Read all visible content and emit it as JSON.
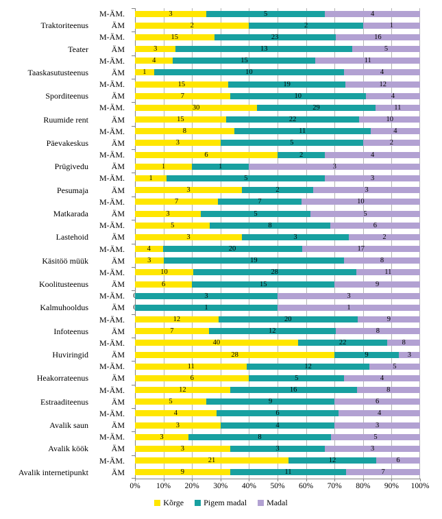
{
  "chart_data": {
    "type": "bar",
    "orientation": "horizontal",
    "stacked": "100%",
    "title": "",
    "xlabel": "",
    "ylabel": "",
    "x_axis": {
      "min": 0,
      "max": 100,
      "grid": true,
      "ticks": [
        "0%",
        "10%",
        "20%",
        "30%",
        "40%",
        "50%",
        "60%",
        "70%",
        "80%",
        "90%",
        "100%"
      ]
    },
    "series_names": [
      "Kõrge",
      "Pigem madal",
      "Madal"
    ],
    "colors": [
      "#FFE600",
      "#18A0A0",
      "#B2A1D2"
    ],
    "legend": {
      "position": "bottom",
      "items": [
        {
          "label": "Kõrge",
          "color": "#FFE600"
        },
        {
          "label": "Pigem madal",
          "color": "#18A0A0"
        },
        {
          "label": "Madal",
          "color": "#B2A1D2"
        }
      ]
    },
    "groups": [
      {
        "category": "Traktoriteenus",
        "bars": [
          {
            "label": "M-ÄM.",
            "values": [
              3,
              5,
              4
            ]
          },
          {
            "label": "ÄM",
            "values": [
              2,
              2,
              1
            ]
          }
        ]
      },
      {
        "category": "Teater",
        "bars": [
          {
            "label": "M-ÄM.",
            "values": [
              15,
              23,
              16
            ]
          },
          {
            "label": "ÄM",
            "values": [
              3,
              13,
              5
            ]
          }
        ]
      },
      {
        "category": "Taaskasutusteenus",
        "bars": [
          {
            "label": "M-ÄM.",
            "values": [
              4,
              15,
              11
            ]
          },
          {
            "label": "ÄM",
            "values": [
              1,
              10,
              4
            ]
          }
        ]
      },
      {
        "category": "Sporditeenus",
        "bars": [
          {
            "label": "M-ÄM.",
            "values": [
              15,
              19,
              12
            ]
          },
          {
            "label": "ÄM",
            "values": [
              7,
              10,
              4
            ]
          }
        ]
      },
      {
        "category": "Ruumide rent",
        "bars": [
          {
            "label": "M-ÄM.",
            "values": [
              30,
              29,
              11
            ]
          },
          {
            "label": "ÄM",
            "values": [
              15,
              22,
              10
            ]
          }
        ]
      },
      {
        "category": "Päevakeskus",
        "bars": [
          {
            "label": "M-ÄM.",
            "values": [
              8,
              11,
              4
            ]
          },
          {
            "label": "ÄM",
            "values": [
              3,
              5,
              2
            ]
          }
        ]
      },
      {
        "category": "Prügivedu",
        "bars": [
          {
            "label": "M-ÄM.",
            "values": [
              6,
              2,
              4
            ]
          },
          {
            "label": "ÄM",
            "values": [
              1,
              1,
              3
            ]
          }
        ]
      },
      {
        "category": "Pesumaja",
        "bars": [
          {
            "label": "M-ÄM.",
            "values": [
              1,
              5,
              3
            ]
          },
          {
            "label": "ÄM",
            "values": [
              3,
              2,
              3
            ]
          }
        ]
      },
      {
        "category": "Matkarada",
        "bars": [
          {
            "label": "M-ÄM.",
            "values": [
              7,
              7,
              10
            ]
          },
          {
            "label": "ÄM",
            "values": [
              3,
              5,
              5
            ]
          }
        ]
      },
      {
        "category": "Lastehoid",
        "bars": [
          {
            "label": "M-ÄM.",
            "values": [
              5,
              8,
              6
            ]
          },
          {
            "label": "ÄM",
            "values": [
              3,
              3,
              2
            ]
          }
        ]
      },
      {
        "category": "Käsitöö müük",
        "bars": [
          {
            "label": "M-ÄM.",
            "values": [
              4,
              20,
              17
            ]
          },
          {
            "label": "ÄM",
            "values": [
              3,
              19,
              8
            ]
          }
        ]
      },
      {
        "category": "Koolitusteenus",
        "bars": [
          {
            "label": "M-ÄM.",
            "values": [
              10,
              28,
              11
            ]
          },
          {
            "label": "ÄM",
            "values": [
              6,
              15,
              9
            ]
          }
        ]
      },
      {
        "category": "Kalmuhooldus",
        "bars": [
          {
            "label": "M-ÄM.",
            "values": [
              0,
              3,
              3
            ]
          },
          {
            "label": "ÄM",
            "values": [
              0,
              1,
              1
            ]
          }
        ]
      },
      {
        "category": "Infoteenus",
        "bars": [
          {
            "label": "M-ÄM.",
            "values": [
              12,
              20,
              9
            ]
          },
          {
            "label": "ÄM",
            "values": [
              7,
              12,
              8
            ]
          }
        ]
      },
      {
        "category": "Huviringid",
        "bars": [
          {
            "label": "M-ÄM.",
            "values": [
              40,
              22,
              8
            ]
          },
          {
            "label": "ÄM",
            "values": [
              28,
              9,
              3
            ]
          }
        ]
      },
      {
        "category": "Heakorrateenus",
        "bars": [
          {
            "label": "M-ÄM.",
            "values": [
              11,
              12,
              5
            ]
          },
          {
            "label": "ÄM",
            "values": [
              6,
              5,
              4
            ]
          }
        ]
      },
      {
        "category": "Estraaditeenus",
        "bars": [
          {
            "label": "M-ÄM.",
            "values": [
              12,
              16,
              8
            ]
          },
          {
            "label": "ÄM",
            "values": [
              5,
              9,
              6
            ]
          }
        ]
      },
      {
        "category": "Avalik saun",
        "bars": [
          {
            "label": "M-ÄM.",
            "values": [
              4,
              6,
              4
            ]
          },
          {
            "label": "ÄM",
            "values": [
              3,
              4,
              3
            ]
          }
        ]
      },
      {
        "category": "Avalik köök",
        "bars": [
          {
            "label": "M-ÄM.",
            "values": [
              3,
              8,
              5
            ]
          },
          {
            "label": "ÄM",
            "values": [
              3,
              3,
              3
            ]
          }
        ]
      },
      {
        "category": "Avalik internetipunkt",
        "bars": [
          {
            "label": "M-ÄM.",
            "values": [
              21,
              12,
              6
            ]
          },
          {
            "label": "ÄM",
            "values": [
              9,
              11,
              7
            ]
          }
        ]
      }
    ]
  }
}
